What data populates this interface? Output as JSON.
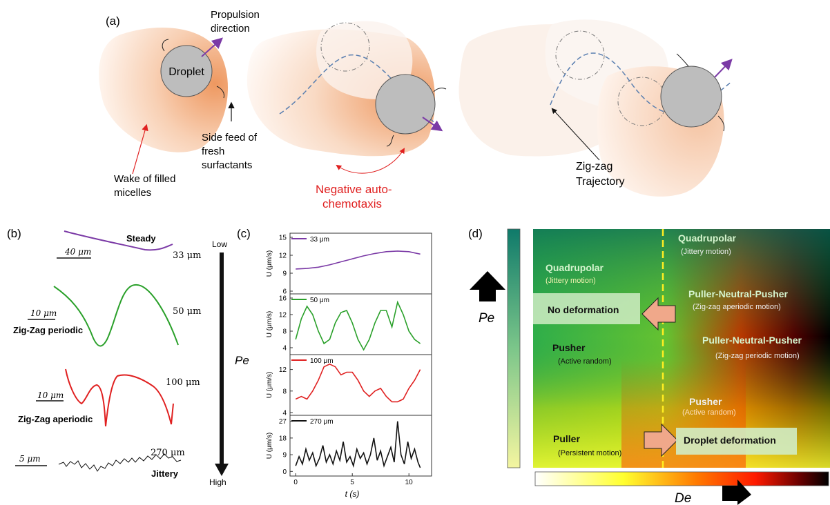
{
  "panel_a": {
    "tag": "(a)",
    "propulsion_1": "Propulsion",
    "propulsion_2": "direction",
    "droplet": "Droplet",
    "side_1": "Side feed of",
    "side_2": "fresh",
    "side_3": "surfactants",
    "wake_1": "Wake of filled",
    "wake_2": "micelles",
    "neg_1": "Negative auto-",
    "neg_2": "chemotaxis",
    "zig_1": "Zig-zag",
    "zig_2": "Trajectory",
    "colors": {
      "wake": "#f0a070",
      "droplet": "#bdbdbd",
      "arrow": "#7b3aa6",
      "red_text": "#e02020"
    }
  },
  "panel_b": {
    "tag": "(b)",
    "steady": "Steady",
    "zz_periodic": "Zig-Zag periodic",
    "zz_aperiodic": "Zig-Zag aperiodic",
    "jittery": "Jittery",
    "size_33": "33 μm",
    "size_50": "50 μm",
    "size_100": "100 μm",
    "size_270": "270 μm",
    "scale_40": "40 μm",
    "scale_10a": "10 μm",
    "scale_10b": "10 μm",
    "scale_5": "5 μm",
    "low": "Low",
    "high": "High",
    "pe": "Pe"
  },
  "panel_c": {
    "tag": "(c)",
    "ylabel": "U (μm/s)",
    "xlabel": "t (s)",
    "x_ticks": [
      "0",
      "5",
      "10"
    ]
  },
  "chart_data": [
    {
      "type": "line",
      "series": [
        {
          "name": "33 μm",
          "color": "#7b3aa6",
          "x": [
            0,
            1,
            2,
            3,
            4,
            5,
            6,
            7,
            8,
            9,
            10,
            11
          ],
          "y": [
            9.7,
            9.8,
            10.0,
            10.4,
            10.9,
            11.4,
            11.9,
            12.3,
            12.6,
            12.7,
            12.6,
            12.2
          ]
        }
      ],
      "ylim": [
        6,
        15
      ],
      "y_ticks": [
        6,
        9,
        12,
        15
      ],
      "xlim": [
        -0.5,
        12
      ]
    },
    {
      "type": "line",
      "series": [
        {
          "name": "50 μm",
          "color": "#2aa02a",
          "x": [
            0,
            0.5,
            1,
            1.5,
            2,
            2.5,
            3,
            3.5,
            4,
            4.5,
            5,
            5.5,
            6,
            6.5,
            7,
            7.5,
            8,
            8.5,
            9,
            9.5,
            10,
            10.5,
            11
          ],
          "y": [
            6,
            11,
            14,
            12,
            8,
            5,
            6,
            10,
            12.5,
            13,
            10,
            6,
            3.5,
            6,
            10,
            13,
            13,
            9,
            15,
            12,
            8,
            6,
            5
          ]
        }
      ],
      "ylim": [
        3,
        16
      ],
      "y_ticks": [
        4,
        8,
        12,
        16
      ],
      "xlim": [
        -0.5,
        12
      ]
    },
    {
      "type": "line",
      "series": [
        {
          "name": "100 μm",
          "color": "#e02020",
          "x": [
            0,
            0.5,
            1,
            1.5,
            2,
            2.5,
            3,
            3.5,
            4,
            4.5,
            5,
            5.5,
            6,
            6.5,
            7,
            7.5,
            8,
            8.5,
            9,
            9.5,
            10,
            10.5,
            11
          ],
          "y": [
            6.5,
            7,
            6.5,
            8,
            10,
            12.5,
            13,
            12.5,
            11,
            11.5,
            11.5,
            10,
            8,
            7,
            8,
            8.5,
            7,
            6,
            6,
            6.5,
            8.5,
            10,
            12
          ]
        }
      ],
      "ylim": [
        4,
        14
      ],
      "y_ticks": [
        4,
        8,
        12
      ],
      "xlim": [
        -0.5,
        12
      ]
    },
    {
      "type": "line",
      "series": [
        {
          "name": "270 μm",
          "color": "#111111",
          "x": [
            0,
            0.3,
            0.6,
            0.9,
            1.2,
            1.5,
            1.8,
            2.1,
            2.4,
            2.7,
            3,
            3.3,
            3.6,
            3.9,
            4.2,
            4.5,
            4.8,
            5.1,
            5.4,
            5.7,
            6,
            6.3,
            6.6,
            6.9,
            7.2,
            7.5,
            7.8,
            8.1,
            8.4,
            8.7,
            9,
            9.3,
            9.6,
            9.9,
            10.2,
            10.5,
            10.8,
            11
          ],
          "y": [
            3,
            8,
            4,
            12,
            6,
            10,
            3,
            7,
            14,
            5,
            9,
            4,
            11,
            6,
            16,
            5,
            8,
            3,
            12,
            7,
            10,
            4,
            9,
            18,
            6,
            11,
            3,
            8,
            13,
            5,
            27,
            9,
            4,
            16,
            7,
            12,
            5,
            2
          ]
        }
      ],
      "ylim": [
        -1,
        28
      ],
      "y_ticks": [
        0,
        9,
        18,
        27
      ],
      "xlim": [
        -0.5,
        12
      ]
    }
  ],
  "panel_d": {
    "tag": "(d)",
    "pe": "Pe",
    "de": "De",
    "quad_left": "Quadrupolar",
    "quad_left_sub": "(Jittery motion)",
    "quad_right": "Quadrupolar",
    "quad_right_sub": "(Jittery motion)",
    "pnp_1": "Puller-Neutral-Pusher",
    "pnp_1_sub": "(Zig-zag aperiodic motion)",
    "pnp_2": "Puller-Neutral-Pusher",
    "pnp_2_sub": "(Zig-zag periodic motion)",
    "no_def": "No deformation",
    "pusher_left": "Pusher",
    "pusher_left_sub": "(Active random)",
    "pusher_right": "Pusher",
    "pusher_right_sub": "(Active random)",
    "puller": "Puller",
    "puller_sub": "(Persistent motion)",
    "droplet_def": "Droplet deformation"
  }
}
